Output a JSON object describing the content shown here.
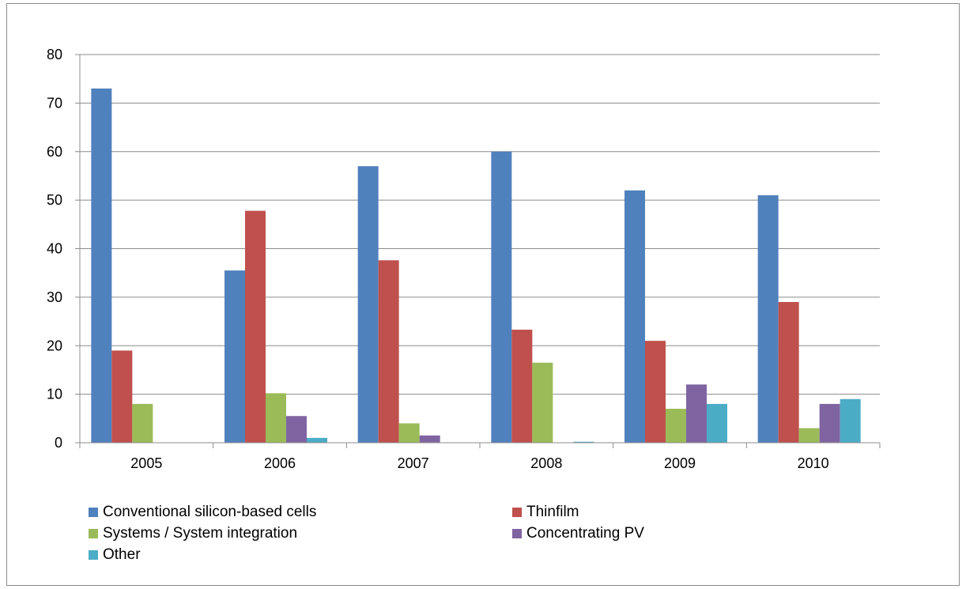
{
  "chart_data": {
    "type": "bar",
    "title": "",
    "xlabel": "",
    "ylabel": "",
    "categories": [
      "2005",
      "2006",
      "2007",
      "2008",
      "2009",
      "2010"
    ],
    "ylim": [
      0,
      80
    ],
    "yticks": [
      0,
      10,
      20,
      30,
      40,
      50,
      60,
      70,
      80
    ],
    "grid": true,
    "legend_position": "bottom",
    "series": [
      {
        "name": "Conventional silicon-based cells",
        "color": "#4f81bd",
        "values": [
          73,
          35.5,
          57,
          60,
          52,
          51
        ]
      },
      {
        "name": "Thinfilm",
        "color": "#c0504d",
        "values": [
          19,
          47.8,
          37.6,
          23.3,
          21,
          29
        ]
      },
      {
        "name": "Systems / System integration",
        "color": "#9bbb59",
        "values": [
          8,
          10.2,
          4,
          16.5,
          7,
          3
        ]
      },
      {
        "name": "Concentrating PV",
        "color": "#8064a2",
        "values": [
          0,
          5.5,
          1.5,
          0,
          12,
          8
        ]
      },
      {
        "name": "Other",
        "color": "#4bacc6",
        "values": [
          0,
          1,
          0,
          0.2,
          8,
          9
        ]
      }
    ]
  }
}
